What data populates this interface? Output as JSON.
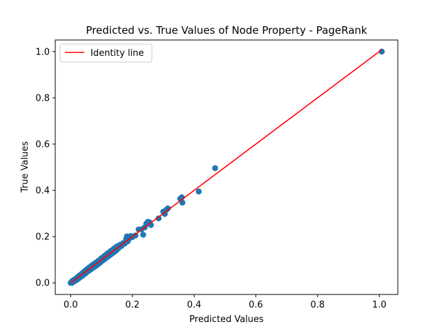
{
  "chart_data": {
    "type": "scatter",
    "title": "Predicted vs. True Values of Node Property - PageRank",
    "xlabel": "Predicted Values",
    "ylabel": "True Values",
    "xlim": [
      -0.05,
      1.06
    ],
    "ylim": [
      -0.05,
      1.05
    ],
    "xticks": [
      0.0,
      0.2,
      0.4,
      0.6,
      0.8,
      1.0
    ],
    "yticks": [
      0.0,
      0.2,
      0.4,
      0.6,
      0.8,
      1.0
    ],
    "xtick_labels": [
      "0.0",
      "0.2",
      "0.4",
      "0.6",
      "0.8",
      "1.0"
    ],
    "ytick_labels": [
      "0.0",
      "0.2",
      "0.4",
      "0.6",
      "0.8",
      "1.0"
    ],
    "grid": false,
    "legend": {
      "position": "top-left",
      "entries": [
        "Identity line"
      ]
    },
    "series": [
      {
        "type": "scatter",
        "color": "#1f77b4",
        "points": [
          [
            0.0,
            0.0
          ],
          [
            0.002,
            0.004
          ],
          [
            0.004,
            0.0
          ],
          [
            0.005,
            0.008
          ],
          [
            0.007,
            0.003
          ],
          [
            0.008,
            0.011
          ],
          [
            0.01,
            0.006
          ],
          [
            0.012,
            0.014
          ],
          [
            0.013,
            0.008
          ],
          [
            0.015,
            0.017
          ],
          [
            0.017,
            0.012
          ],
          [
            0.018,
            0.02
          ],
          [
            0.02,
            0.013
          ],
          [
            0.022,
            0.024
          ],
          [
            0.023,
            0.018
          ],
          [
            0.025,
            0.028
          ],
          [
            0.027,
            0.02
          ],
          [
            0.028,
            0.031
          ],
          [
            0.03,
            0.024
          ],
          [
            0.032,
            0.035
          ],
          [
            0.033,
            0.027
          ],
          [
            0.035,
            0.038
          ],
          [
            0.037,
            0.03
          ],
          [
            0.038,
            0.042
          ],
          [
            0.04,
            0.034
          ],
          [
            0.042,
            0.046
          ],
          [
            0.043,
            0.037
          ],
          [
            0.045,
            0.05
          ],
          [
            0.047,
            0.04
          ],
          [
            0.048,
            0.053
          ],
          [
            0.05,
            0.044
          ],
          [
            0.052,
            0.058
          ],
          [
            0.053,
            0.048
          ],
          [
            0.055,
            0.061
          ],
          [
            0.058,
            0.052
          ],
          [
            0.06,
            0.066
          ],
          [
            0.062,
            0.056
          ],
          [
            0.065,
            0.071
          ],
          [
            0.067,
            0.06
          ],
          [
            0.07,
            0.077
          ],
          [
            0.072,
            0.065
          ],
          [
            0.075,
            0.081
          ],
          [
            0.078,
            0.07
          ],
          [
            0.08,
            0.086
          ],
          [
            0.083,
            0.075
          ],
          [
            0.086,
            0.091
          ],
          [
            0.088,
            0.08
          ],
          [
            0.09,
            0.096
          ],
          [
            0.093,
            0.085
          ],
          [
            0.096,
            0.102
          ],
          [
            0.098,
            0.091
          ],
          [
            0.1,
            0.107
          ],
          [
            0.103,
            0.096
          ],
          [
            0.106,
            0.112
          ],
          [
            0.108,
            0.101
          ],
          [
            0.11,
            0.117
          ],
          [
            0.113,
            0.106
          ],
          [
            0.116,
            0.123
          ],
          [
            0.118,
            0.111
          ],
          [
            0.12,
            0.128
          ],
          [
            0.123,
            0.116
          ],
          [
            0.126,
            0.133
          ],
          [
            0.128,
            0.121
          ],
          [
            0.13,
            0.138
          ],
          [
            0.133,
            0.126
          ],
          [
            0.136,
            0.143
          ],
          [
            0.138,
            0.131
          ],
          [
            0.14,
            0.148
          ],
          [
            0.143,
            0.136
          ],
          [
            0.146,
            0.153
          ],
          [
            0.148,
            0.141
          ],
          [
            0.15,
            0.158
          ],
          [
            0.155,
            0.15
          ],
          [
            0.16,
            0.165
          ],
          [
            0.165,
            0.16
          ],
          [
            0.17,
            0.172
          ],
          [
            0.175,
            0.17
          ],
          [
            0.18,
            0.19
          ],
          [
            0.182,
            0.201
          ],
          [
            0.185,
            0.18
          ],
          [
            0.19,
            0.192
          ],
          [
            0.195,
            0.203
          ],
          [
            0.2,
            0.198
          ],
          [
            0.21,
            0.205
          ],
          [
            0.22,
            0.231
          ],
          [
            0.23,
            0.232
          ],
          [
            0.235,
            0.208
          ],
          [
            0.24,
            0.24
          ],
          [
            0.245,
            0.256
          ],
          [
            0.25,
            0.264
          ],
          [
            0.255,
            0.262
          ],
          [
            0.26,
            0.25
          ],
          [
            0.285,
            0.279
          ],
          [
            0.3,
            0.308
          ],
          [
            0.305,
            0.298
          ],
          [
            0.31,
            0.316
          ],
          [
            0.315,
            0.322
          ],
          [
            0.355,
            0.364
          ],
          [
            0.36,
            0.37
          ],
          [
            0.362,
            0.347
          ],
          [
            0.415,
            0.395
          ],
          [
            0.468,
            0.496
          ],
          [
            1.008,
            1.0
          ]
        ]
      },
      {
        "type": "line",
        "name": "Identity line",
        "color": "#ff0000",
        "points": [
          [
            0.0,
            0.0
          ],
          [
            1.008,
            1.008
          ]
        ]
      }
    ]
  }
}
